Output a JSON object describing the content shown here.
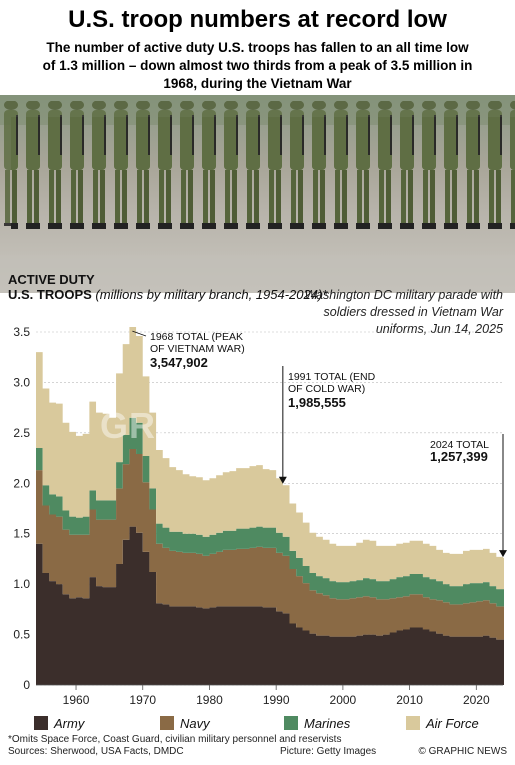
{
  "header": {
    "title": "U.S. troop numbers at record low",
    "subtitle": "The number of active duty U.S. troops has fallen to an all time low of 1.3 million – down almost two thirds from a peak of 3.5 million in 1968, during the Vietnam War"
  },
  "photo": {
    "caption": "Washington DC military parade with soldiers dressed in Vietnam War uniforms, Jun 14, 2025"
  },
  "chart_heading": {
    "line1": "ACTIVE DUTY",
    "line2": "U.S. TROOPS",
    "note": "(millions by military branch, 1954-2024)*"
  },
  "chart_data": {
    "type": "area",
    "stacked": true,
    "x_start": 1954,
    "x_end": 2024,
    "x": [
      1954,
      1955,
      1956,
      1957,
      1958,
      1959,
      1960,
      1961,
      1962,
      1963,
      1964,
      1965,
      1966,
      1967,
      1968,
      1969,
      1970,
      1971,
      1972,
      1973,
      1974,
      1975,
      1976,
      1977,
      1978,
      1979,
      1980,
      1981,
      1982,
      1983,
      1984,
      1985,
      1986,
      1987,
      1988,
      1989,
      1990,
      1991,
      1992,
      1993,
      1994,
      1995,
      1996,
      1997,
      1998,
      1999,
      2000,
      2001,
      2002,
      2003,
      2004,
      2005,
      2006,
      2007,
      2008,
      2009,
      2010,
      2011,
      2012,
      2013,
      2014,
      2015,
      2016,
      2017,
      2018,
      2019,
      2020,
      2021,
      2022,
      2023,
      2024
    ],
    "ylim": [
      0,
      3.5
    ],
    "yticks": [
      0,
      0.5,
      1.0,
      1.5,
      2.0,
      2.5,
      3.0,
      3.5
    ],
    "ytick_labels": [
      "0",
      "0.5",
      "1.0",
      "1.5",
      "2.0",
      "2.5",
      "3.0",
      "3.5"
    ],
    "xticks": [
      1960,
      1970,
      1980,
      1990,
      2000,
      2010,
      2020
    ],
    "xtick_labels": [
      "1960",
      "1970",
      "1980",
      "1990",
      "2000",
      "2010",
      "2020"
    ],
    "grid": true,
    "series": [
      {
        "name": "Army",
        "color": "#3b2e2b",
        "values": [
          1.4,
          1.11,
          1.03,
          1.0,
          0.9,
          0.86,
          0.87,
          0.86,
          1.07,
          0.98,
          0.97,
          0.97,
          1.2,
          1.44,
          1.57,
          1.51,
          1.32,
          1.12,
          0.81,
          0.8,
          0.78,
          0.78,
          0.78,
          0.78,
          0.77,
          0.76,
          0.77,
          0.78,
          0.78,
          0.78,
          0.78,
          0.78,
          0.78,
          0.78,
          0.77,
          0.77,
          0.73,
          0.71,
          0.61,
          0.57,
          0.54,
          0.51,
          0.49,
          0.49,
          0.48,
          0.48,
          0.48,
          0.48,
          0.49,
          0.5,
          0.5,
          0.49,
          0.5,
          0.52,
          0.54,
          0.55,
          0.57,
          0.57,
          0.55,
          0.53,
          0.51,
          0.49,
          0.48,
          0.48,
          0.48,
          0.48,
          0.48,
          0.49,
          0.47,
          0.45,
          0.45
        ]
      },
      {
        "name": "Navy",
        "color": "#8a6a45",
        "values": [
          0.73,
          0.67,
          0.66,
          0.67,
          0.64,
          0.63,
          0.62,
          0.63,
          0.67,
          0.66,
          0.67,
          0.67,
          0.75,
          0.75,
          0.77,
          0.78,
          0.69,
          0.62,
          0.59,
          0.56,
          0.55,
          0.54,
          0.53,
          0.53,
          0.53,
          0.52,
          0.53,
          0.54,
          0.56,
          0.56,
          0.57,
          0.57,
          0.58,
          0.59,
          0.59,
          0.59,
          0.58,
          0.57,
          0.54,
          0.51,
          0.47,
          0.43,
          0.42,
          0.4,
          0.38,
          0.37,
          0.37,
          0.38,
          0.38,
          0.38,
          0.37,
          0.36,
          0.35,
          0.34,
          0.33,
          0.33,
          0.33,
          0.33,
          0.32,
          0.32,
          0.33,
          0.33,
          0.32,
          0.32,
          0.33,
          0.34,
          0.35,
          0.35,
          0.34,
          0.33,
          0.33
        ]
      },
      {
        "name": "Marines",
        "color": "#4f8a61",
        "values": [
          0.22,
          0.2,
          0.2,
          0.2,
          0.19,
          0.18,
          0.17,
          0.18,
          0.19,
          0.19,
          0.19,
          0.19,
          0.26,
          0.29,
          0.31,
          0.31,
          0.26,
          0.21,
          0.2,
          0.2,
          0.19,
          0.2,
          0.19,
          0.19,
          0.19,
          0.19,
          0.19,
          0.19,
          0.19,
          0.19,
          0.2,
          0.2,
          0.2,
          0.2,
          0.2,
          0.2,
          0.2,
          0.19,
          0.18,
          0.18,
          0.17,
          0.17,
          0.17,
          0.17,
          0.17,
          0.17,
          0.17,
          0.17,
          0.17,
          0.18,
          0.18,
          0.18,
          0.18,
          0.19,
          0.2,
          0.2,
          0.2,
          0.2,
          0.2,
          0.2,
          0.19,
          0.18,
          0.18,
          0.18,
          0.19,
          0.19,
          0.18,
          0.18,
          0.17,
          0.17,
          0.17
        ]
      },
      {
        "name": "Air Force",
        "color": "#d9c99c",
        "values": [
          0.95,
          0.96,
          0.91,
          0.92,
          0.87,
          0.84,
          0.81,
          0.82,
          0.88,
          0.87,
          0.86,
          0.82,
          0.88,
          0.9,
          0.9,
          0.86,
          0.79,
          0.75,
          0.73,
          0.69,
          0.64,
          0.61,
          0.59,
          0.57,
          0.57,
          0.56,
          0.56,
          0.57,
          0.58,
          0.59,
          0.6,
          0.6,
          0.61,
          0.61,
          0.58,
          0.57,
          0.54,
          0.51,
          0.47,
          0.45,
          0.43,
          0.4,
          0.39,
          0.38,
          0.37,
          0.36,
          0.36,
          0.35,
          0.37,
          0.38,
          0.38,
          0.35,
          0.35,
          0.33,
          0.33,
          0.33,
          0.33,
          0.33,
          0.33,
          0.33,
          0.31,
          0.31,
          0.32,
          0.32,
          0.33,
          0.33,
          0.33,
          0.33,
          0.33,
          0.32,
          0.31
        ]
      }
    ],
    "annotations": [
      {
        "x": 1968,
        "y": 3.547902,
        "label": "1968 TOTAL (PEAK OF VIETNAM WAR)",
        "value": "3,547,902"
      },
      {
        "x": 1991,
        "y": 1.985555,
        "label": "1991 TOTAL (END OF COLD WAR)",
        "value": "1,985,555"
      },
      {
        "x": 2024,
        "y": 1.257399,
        "label": "2024 TOTAL",
        "value": "1,257,399"
      }
    ]
  },
  "legend": [
    {
      "name": "Army",
      "color": "#3b2e2b"
    },
    {
      "name": "Navy",
      "color": "#8a6a45"
    },
    {
      "name": "Marines",
      "color": "#4f8a61"
    },
    {
      "name": "Air Force",
      "color": "#d9c99c"
    }
  ],
  "footer": {
    "footnote": "*Omits Space Force, Coast Guard, civilian military personnel and reservists",
    "sources": "Sources: Sherwood, USA Facts, DMDC",
    "picture_credit": "Picture: Getty Images",
    "copyright": "© GRAPHIC NEWS"
  },
  "watermark": "GRAPHIC NEWS"
}
